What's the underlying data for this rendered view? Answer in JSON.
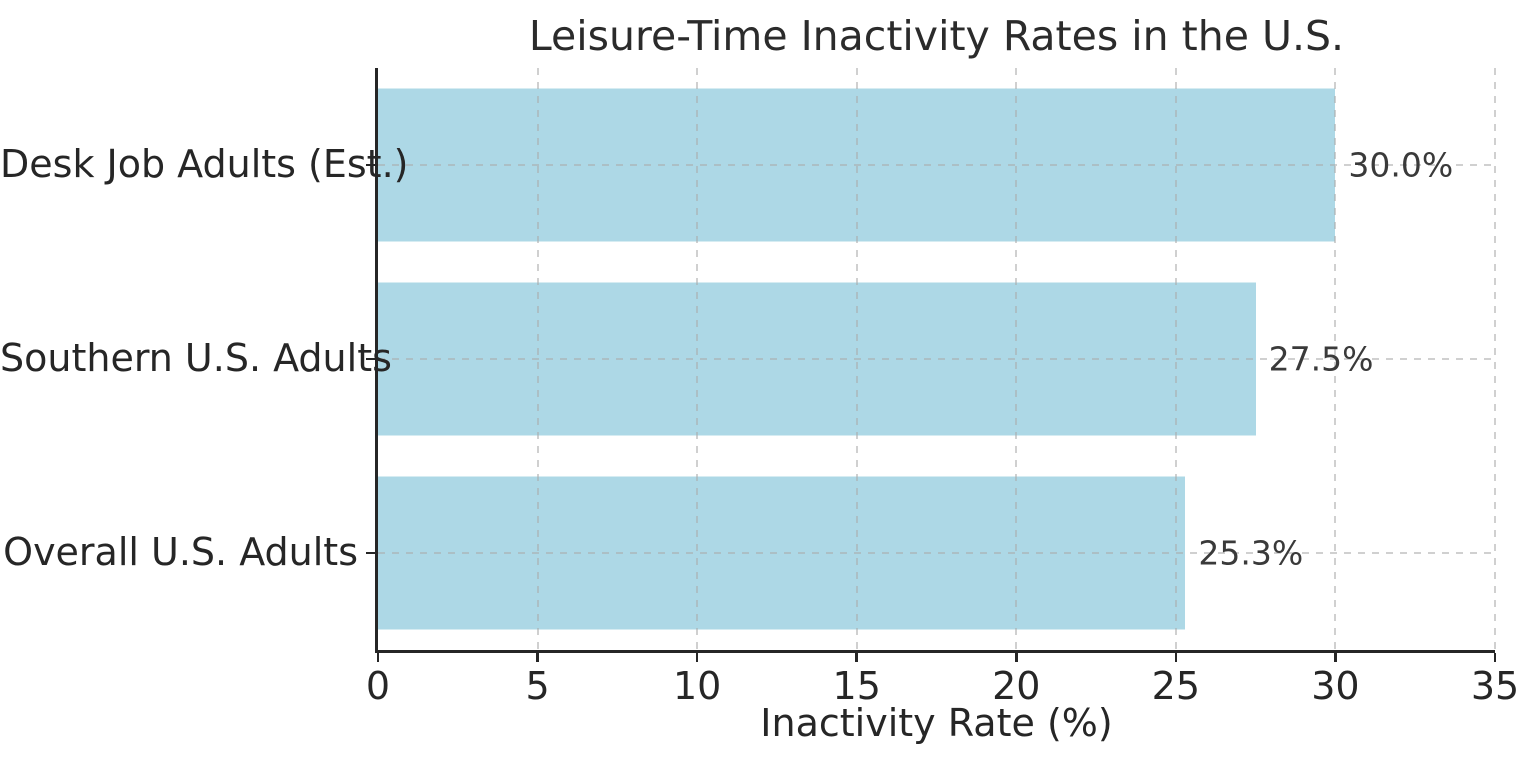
{
  "chart_data": {
    "type": "bar",
    "orientation": "horizontal",
    "title": "Leisure-Time Inactivity Rates in the U.S.",
    "xlabel": "Inactivity Rate (%)",
    "ylabel": "",
    "categories": [
      "Desk Job Adults (Est.)",
      "Southern U.S. Adults",
      "Overall U.S. Adults"
    ],
    "values": [
      30.0,
      27.5,
      25.3
    ],
    "value_labels": [
      "30.0%",
      "27.5%",
      "25.3%"
    ],
    "xlim": [
      0,
      35
    ],
    "xticks": [
      0,
      5,
      10,
      15,
      20,
      25,
      30,
      35
    ],
    "xtick_labels": [
      "0",
      "5",
      "10",
      "15",
      "20",
      "25",
      "30",
      "35"
    ],
    "grid": "dashed",
    "legend": "none",
    "colors": {
      "bar": "#ADD8E6",
      "axis": "#262626",
      "grid": "#aaaaaa",
      "title_text": "#2b2b2b",
      "label_text": "#262626",
      "background": "#ffffff"
    }
  }
}
